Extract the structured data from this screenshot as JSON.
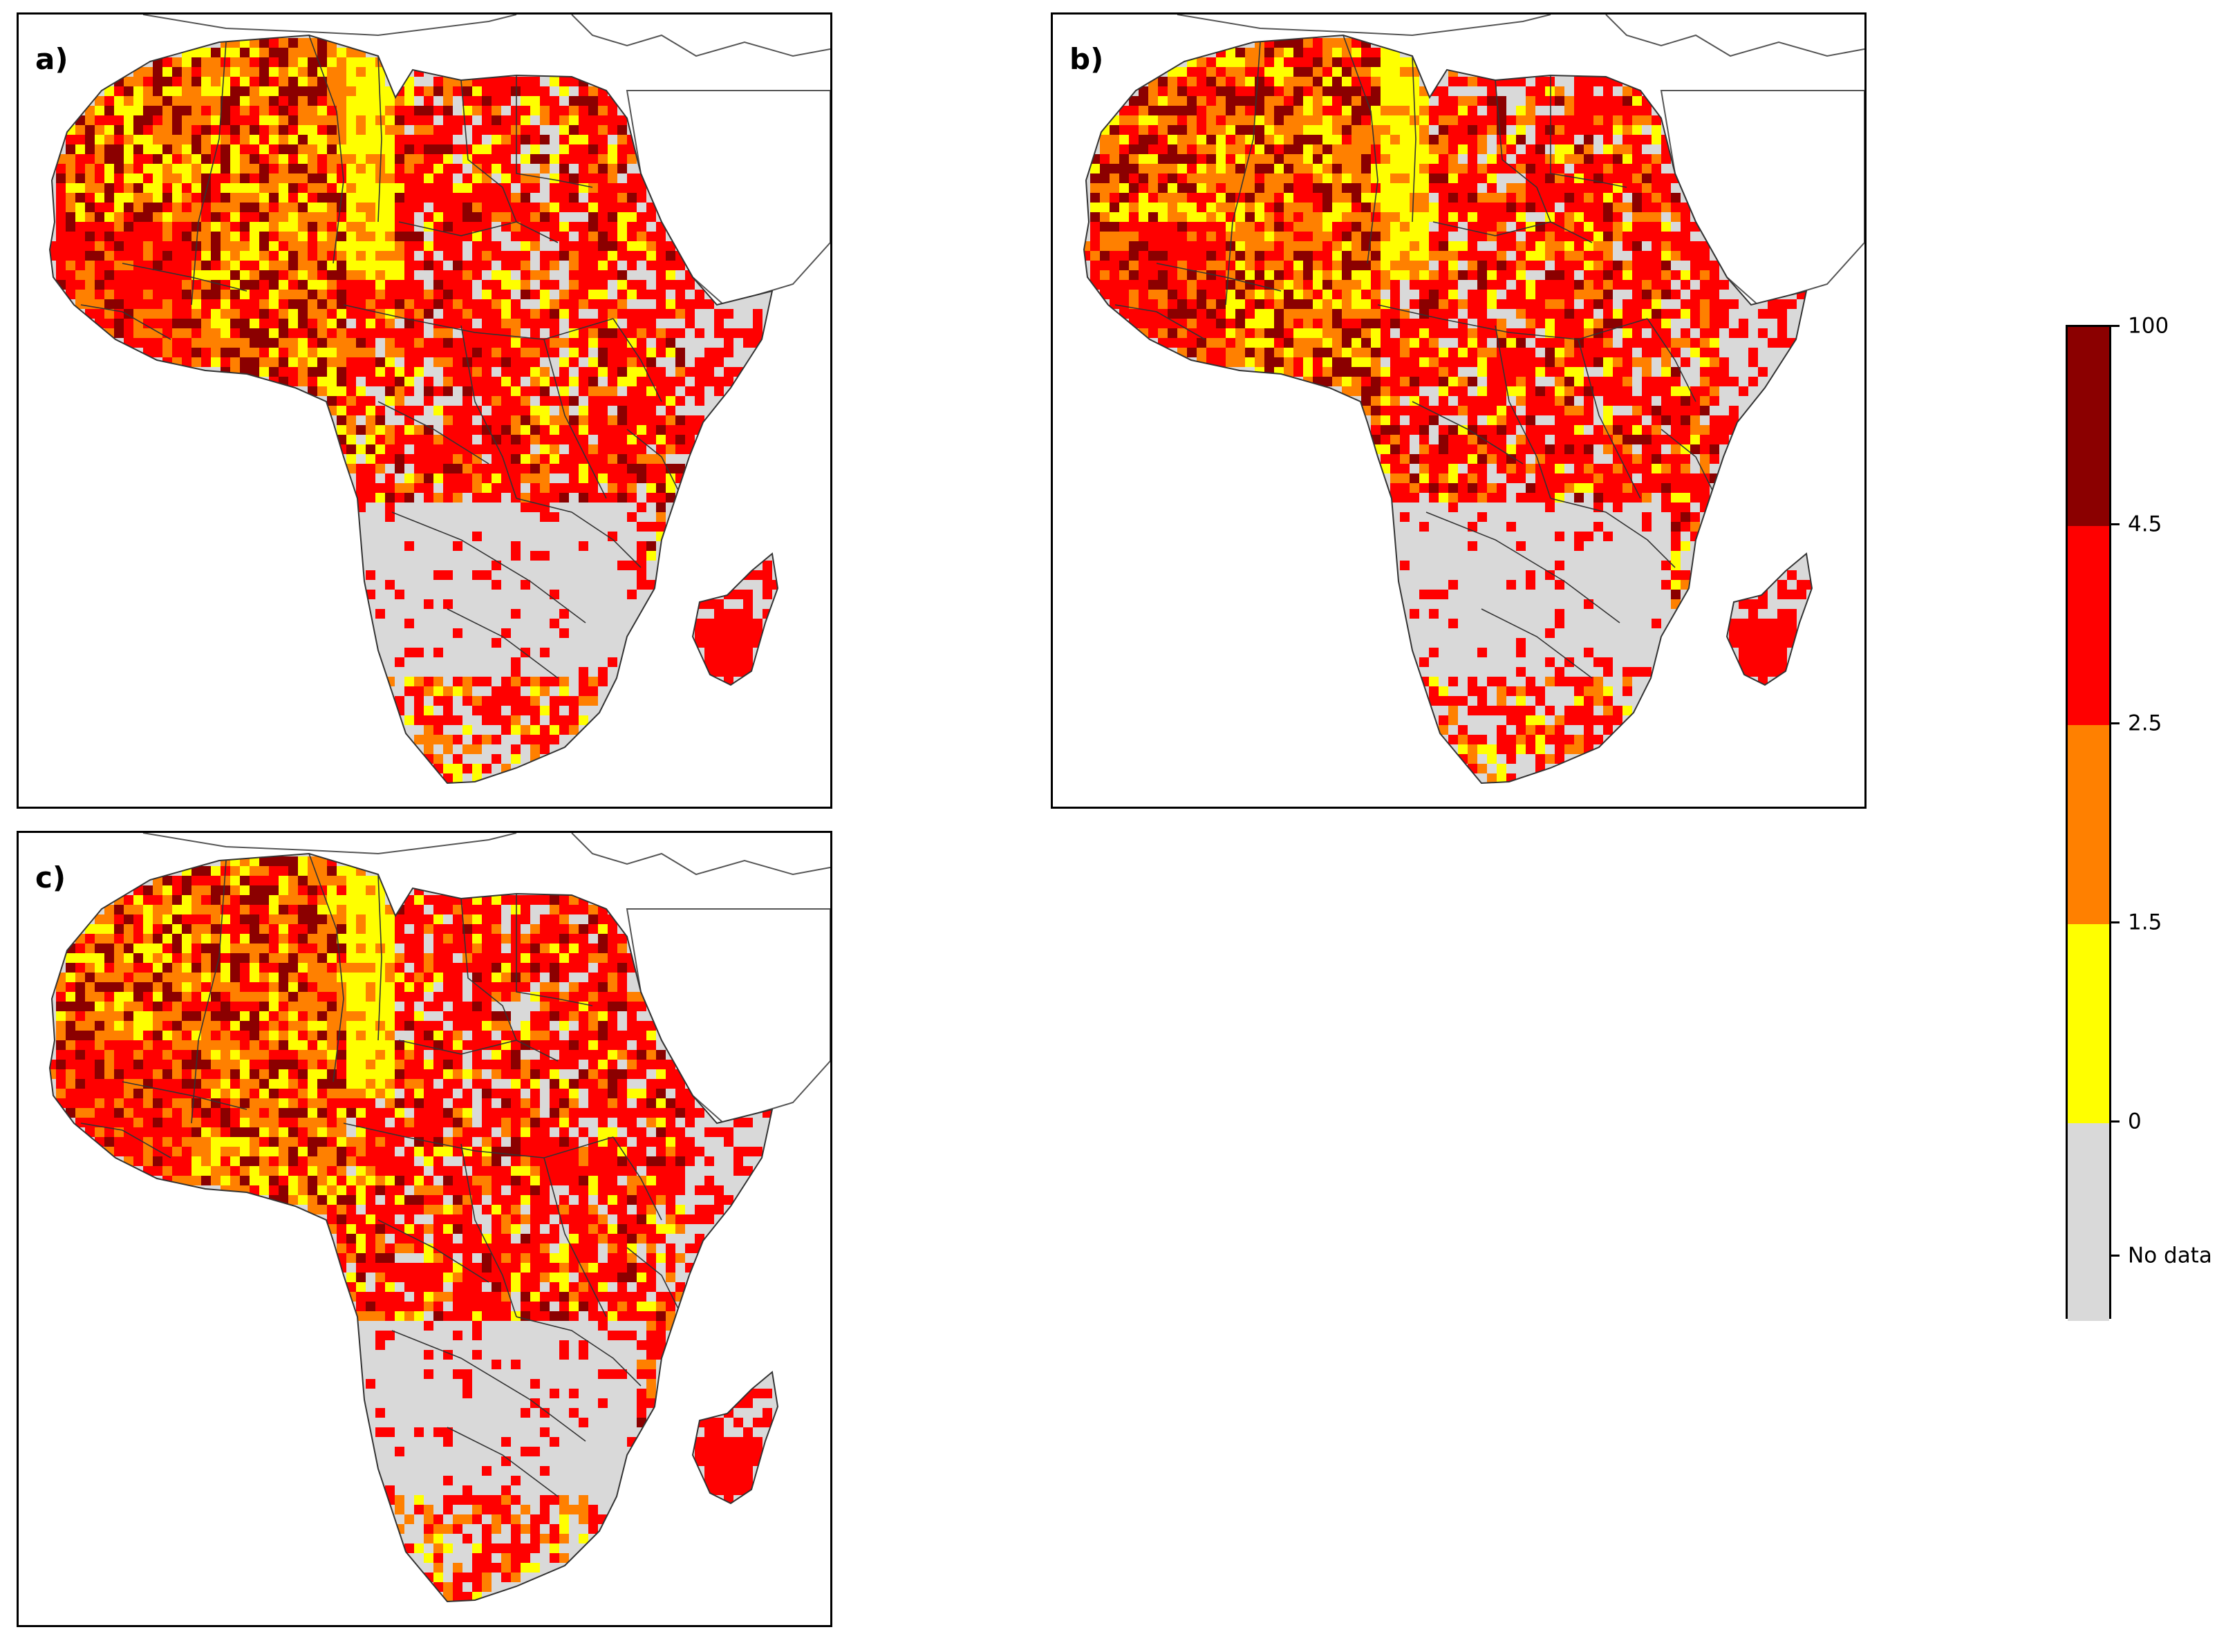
{
  "panels": [
    {
      "label": "a)",
      "seed": 11
    },
    {
      "label": "b)",
      "seed": 29
    },
    {
      "label": "c)",
      "seed": 47
    }
  ],
  "legend": {
    "type": "discrete_colorbar",
    "classes": [
      {
        "range": "No data",
        "color": "#d9d9d9"
      },
      {
        "range": "0 – 1.5",
        "color": "#ffff00"
      },
      {
        "range": "1.5 – 2.5",
        "color": "#ff8000"
      },
      {
        "range": "2.5 – 4.5",
        "color": "#ff0000"
      },
      {
        "range": "4.5 – 100",
        "color": "#8b0000"
      }
    ],
    "tick_labels": [
      "100",
      "4.5",
      "2.5",
      "1.5",
      "0",
      "No data"
    ]
  },
  "colors": {
    "no_data": "#d9d9d9",
    "yellow": "#ffff00",
    "orange": "#ff8000",
    "red": "#ff0000",
    "darkred": "#8b0000",
    "border": "#555555"
  }
}
